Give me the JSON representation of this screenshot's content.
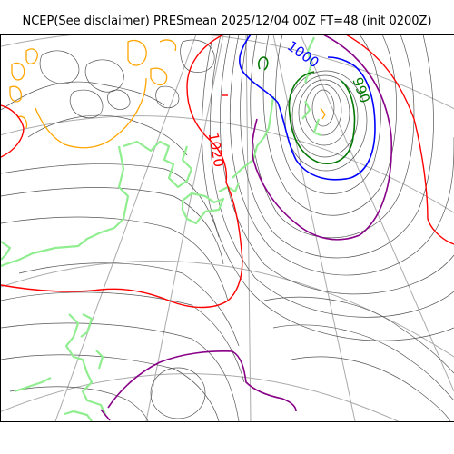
{
  "title": "NCEP(See disclaimer) PRESmean 2025/12/04 00Z FT=48 (init 0200Z)",
  "contour_labels": [
    {
      "text": "1000",
      "color": "#0000ff",
      "rotate": 35
    },
    {
      "text": "990",
      "color": "#007700",
      "rotate": 70
    },
    {
      "text": "1020",
      "color": "#ff0000",
      "rotate": 80
    }
  ],
  "colors": {
    "isobar": "#555555",
    "red_1020": "#ff0000",
    "blue_1000": "#0000ff",
    "green_990": "#007700",
    "purple_1010": "#880088",
    "orange": "#ffa500",
    "coast": "#90ee90",
    "grid": "#aaaaaa"
  }
}
